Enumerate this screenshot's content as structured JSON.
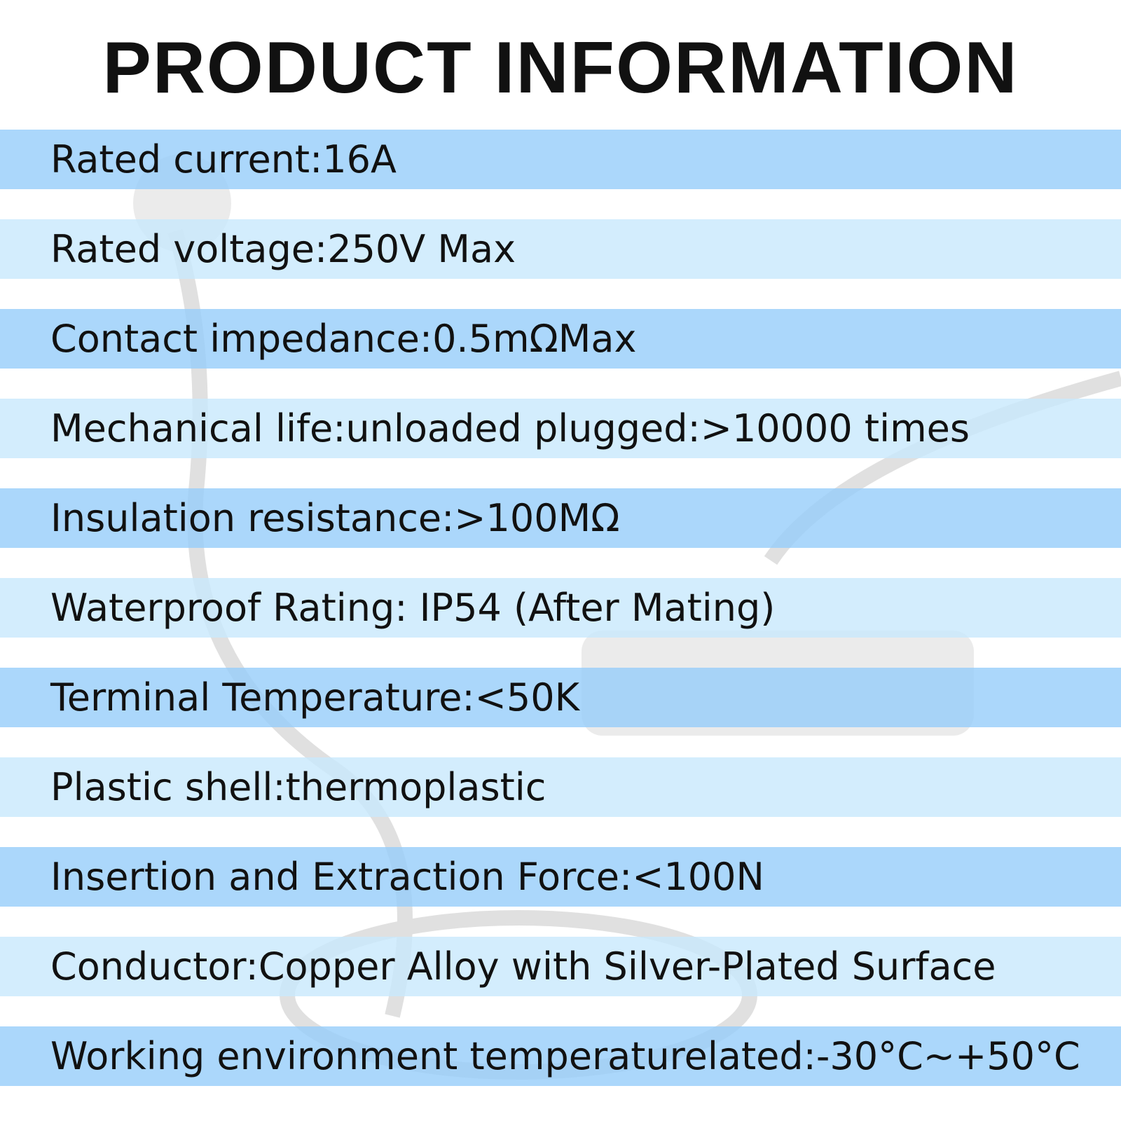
{
  "header": {
    "title": "PRODUCT INFORMATION"
  },
  "specs": [
    "Rated current:16A",
    "Rated voltage:250V Max",
    "Contact impedance:0.5mΩMax",
    "Mechanical life:unloaded plugged:>10000 times",
    "Insulation resistance:>100MΩ",
    "Waterproof Rating: IP54 (After Mating)",
    "Terminal Temperature:<50K",
    "Plastic shell:thermoplastic",
    "Insertion and Extraction Force:<100N",
    "Conductor:Copper Alloy with Silver-Plated Surface",
    "Working environment temperaturelated:-30°C~+50°C"
  ]
}
